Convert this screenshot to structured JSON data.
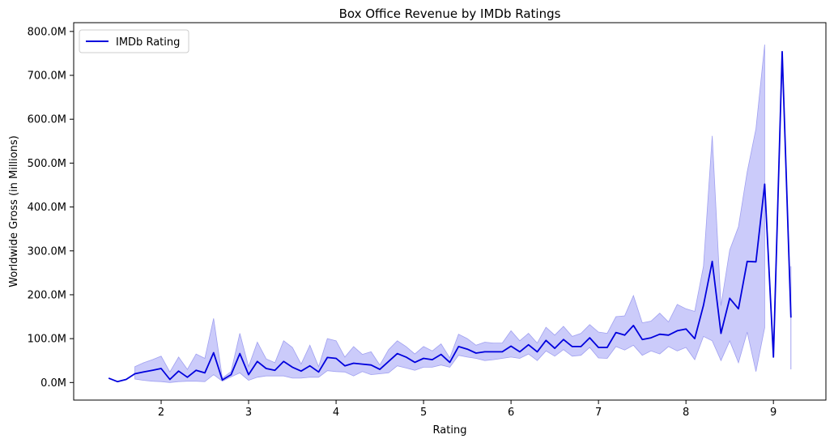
{
  "chart_data": {
    "type": "line",
    "title": "Box Office Revenue by IMDb Ratings",
    "xlabel": "Rating",
    "ylabel": "Worldwide Gross (in Millions)",
    "xlim": [
      1.0,
      9.6
    ],
    "ylim": [
      -40,
      820
    ],
    "x_ticks": [
      2,
      3,
      4,
      5,
      6,
      7,
      8,
      9
    ],
    "x_tick_labels": [
      "2",
      "3",
      "4",
      "5",
      "6",
      "7",
      "8",
      "9"
    ],
    "y_ticks": [
      0,
      100,
      200,
      300,
      400,
      500,
      600,
      700,
      800
    ],
    "y_tick_labels": [
      "0.0M",
      "100.0M",
      "200.0M",
      "300.0M",
      "400.0M",
      "500.0M",
      "600.0M",
      "700.0M",
      "800.0M"
    ],
    "grid": false,
    "legend": {
      "placement": "top-left",
      "entries": [
        "IMDb Rating"
      ]
    },
    "colors": {
      "line": "#0000dd",
      "band": "#c8c8fa",
      "band_edge": "#a0a0f0"
    },
    "series": [
      {
        "name": "IMDb Rating",
        "x": [
          1.4,
          1.5,
          1.6,
          1.7,
          1.8,
          1.9,
          2.0,
          2.1,
          2.2,
          2.3,
          2.4,
          2.5,
          2.6,
          2.7,
          2.8,
          2.9,
          3.0,
          3.1,
          3.2,
          3.3,
          3.4,
          3.5,
          3.6,
          3.7,
          3.8,
          3.9,
          4.0,
          4.1,
          4.2,
          4.3,
          4.4,
          4.5,
          4.6,
          4.7,
          4.8,
          4.9,
          5.0,
          5.1,
          5.2,
          5.3,
          5.4,
          5.5,
          5.6,
          5.7,
          5.8,
          5.9,
          6.0,
          6.1,
          6.2,
          6.3,
          6.4,
          6.5,
          6.6,
          6.7,
          6.8,
          6.9,
          7.0,
          7.1,
          7.2,
          7.3,
          7.4,
          7.5,
          7.6,
          7.7,
          7.8,
          7.9,
          8.0,
          8.1,
          8.2,
          8.3,
          8.4,
          8.5,
          8.6,
          8.7,
          8.8,
          8.9,
          9.0,
          9.1,
          9.2
        ],
        "y": [
          10,
          2,
          7,
          20,
          24,
          28,
          32,
          7,
          26,
          12,
          28,
          22,
          68,
          6,
          18,
          66,
          18,
          48,
          32,
          28,
          48,
          35,
          26,
          38,
          24,
          57,
          55,
          38,
          44,
          42,
          40,
          30,
          48,
          66,
          58,
          46,
          55,
          52,
          64,
          46,
          82,
          76,
          67,
          70,
          70,
          70,
          83,
          70,
          86,
          70,
          96,
          78,
          98,
          82,
          82,
          102,
          80,
          80,
          114,
          108,
          130,
          98,
          102,
          110,
          108,
          118,
          122,
          100,
          176,
          276,
          112,
          192,
          168,
          276,
          275,
          452,
          58,
          754,
          148
        ],
        "ci_low": [
          null,
          null,
          null,
          8,
          5,
          3,
          2,
          0,
          2,
          3,
          3,
          2,
          18,
          3,
          13,
          22,
          5,
          12,
          15,
          15,
          15,
          10,
          10,
          12,
          12,
          27,
          25,
          24,
          15,
          25,
          18,
          20,
          22,
          38,
          33,
          28,
          35,
          35,
          40,
          35,
          62,
          58,
          55,
          50,
          52,
          55,
          58,
          55,
          65,
          50,
          72,
          60,
          75,
          60,
          62,
          80,
          56,
          55,
          82,
          74,
          85,
          62,
          72,
          65,
          82,
          72,
          80,
          52,
          105,
          95,
          50,
          95,
          45,
          115,
          25,
          125,
          0,
          0,
          30
        ],
        "ci_high": [
          null,
          null,
          null,
          36,
          45,
          52,
          60,
          24,
          58,
          30,
          65,
          55,
          146,
          10,
          25,
          112,
          36,
          92,
          54,
          45,
          95,
          80,
          42,
          85,
          36,
          100,
          95,
          58,
          82,
          64,
          70,
          40,
          75,
          95,
          82,
          65,
          82,
          72,
          88,
          56,
          110,
          100,
          85,
          92,
          90,
          90,
          118,
          95,
          112,
          90,
          126,
          108,
          128,
          105,
          112,
          132,
          115,
          112,
          150,
          152,
          198,
          136,
          140,
          158,
          138,
          178,
          168,
          162,
          265,
          562,
          175,
          302,
          355,
          480,
          578,
          770,
          null,
          null,
          null
        ]
      }
    ]
  }
}
